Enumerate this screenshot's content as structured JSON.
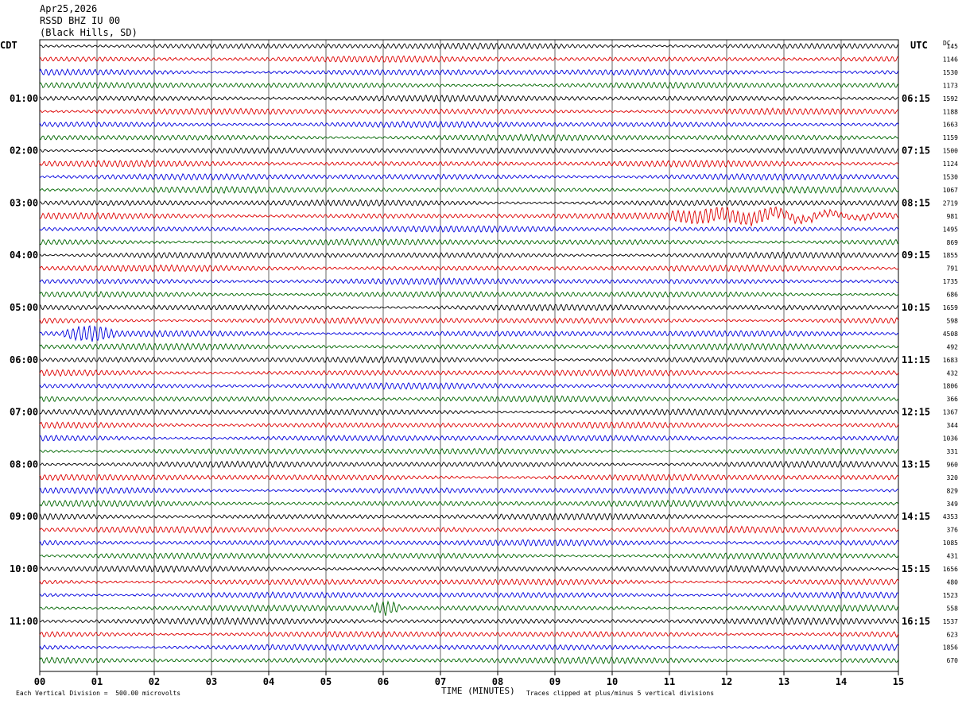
{
  "header": {
    "date": "Apr25,2026",
    "station": "RSSD BHZ IU 00",
    "location": "(Black Hills, SD)"
  },
  "left_timezone": "CDT",
  "right_timezone": "UTC",
  "right_col_header": "DC",
  "footer": {
    "scale_note": "Each Vertical Division =  500.00 microvolts",
    "xlabel": "TIME (MINUTES)",
    "clip_note": "Traces clipped at plus/minus 5 vertical divisions"
  },
  "colors": {
    "trace_cycle": [
      "#000000",
      "#dd0000",
      "#0000dd",
      "#006600"
    ],
    "grid": "#000000"
  },
  "chart_data": {
    "type": "line",
    "title": "RSSD BHZ IU 00",
    "xlabel": "TIME (MINUTES)",
    "xlim": [
      0,
      15
    ],
    "x_ticks": [
      "00",
      "01",
      "02",
      "03",
      "04",
      "05",
      "06",
      "07",
      "08",
      "09",
      "10",
      "11",
      "12",
      "13",
      "14",
      "15"
    ],
    "row_minutes": 15,
    "rows": 48,
    "left_hour_labels": [
      "01:00",
      "02:00",
      "03:00",
      "04:00",
      "05:00",
      "06:00",
      "07:00",
      "08:00",
      "09:00",
      "10:00",
      "11:00"
    ],
    "right_hour_labels": [
      "06:15",
      "07:15",
      "08:15",
      "09:15",
      "10:15",
      "11:15",
      "12:15",
      "13:15",
      "14:15",
      "15:15",
      "16:15"
    ],
    "dc_offsets": [
      "145",
      "1146",
      "1530",
      "1173",
      "1592",
      "1188",
      "1663",
      "1159",
      "1500",
      "1124",
      "1530",
      "1067",
      "2719",
      "981",
      "1495",
      "869",
      "1855",
      "791",
      "1735",
      "686",
      "1659",
      "598",
      "4508",
      "492",
      "1683",
      "432",
      "1806",
      "366",
      "1367",
      "344",
      "1036",
      "331",
      "960",
      "320",
      "829",
      "349",
      "4353",
      "376",
      "1085",
      "431",
      "1656",
      "480",
      "1523",
      "558",
      "1537",
      "623",
      "1856",
      "670"
    ],
    "events": [
      {
        "row": 13,
        "start_min": 11.0,
        "end_min": 15.0,
        "note": "large red trace disturbance"
      },
      {
        "row": 22,
        "start_min": 0.4,
        "end_min": 1.3,
        "note": "blue spike"
      },
      {
        "row": 43,
        "start_min": 5.8,
        "end_min": 6.3,
        "note": "green burst"
      }
    ]
  }
}
